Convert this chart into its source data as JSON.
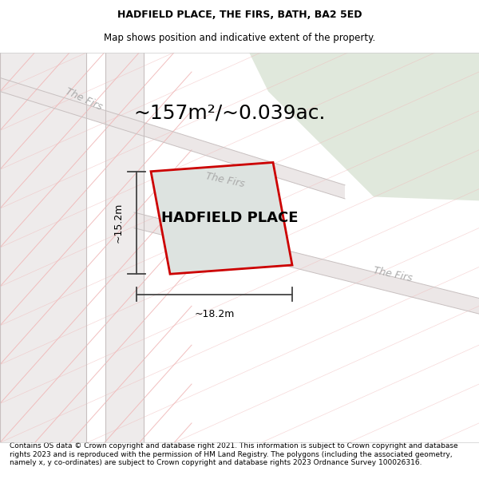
{
  "title": "HADFIELD PLACE, THE FIRS, BATH, BA2 5ED",
  "subtitle": "Map shows position and indicative extent of the property.",
  "area_text": "~157m²/~0.039ac.",
  "property_label": "HADFIELD PLACE",
  "dim_width": "~18.2m",
  "dim_height": "~15.2m",
  "footer": "Contains OS data © Crown copyright and database right 2021. This information is subject to Crown copyright and database rights 2023 and is reproduced with the permission of HM Land Registry. The polygons (including the associated geometry, namely x, y co-ordinates) are subject to Crown copyright and database rights 2023 Ordnance Survey 100026316.",
  "bg_color": "#f5f3f2",
  "green_area_color": "#e0e8dc",
  "road_fill_color": "#ece7e7",
  "plot_outline_color": "#cc0000",
  "plot_fill_color": "#dde3e0",
  "street_label_color": "#aaaaaa",
  "dim_line_color": "#444444",
  "red_line_color": "#f0b8b8",
  "gray_line_color": "#c8c0c0",
  "title_fontsize": 9,
  "subtitle_fontsize": 8.5,
  "area_fontsize": 18,
  "property_label_fontsize": 13,
  "street_label_fontsize": 9,
  "dim_fontsize": 9,
  "footer_fontsize": 6.5
}
